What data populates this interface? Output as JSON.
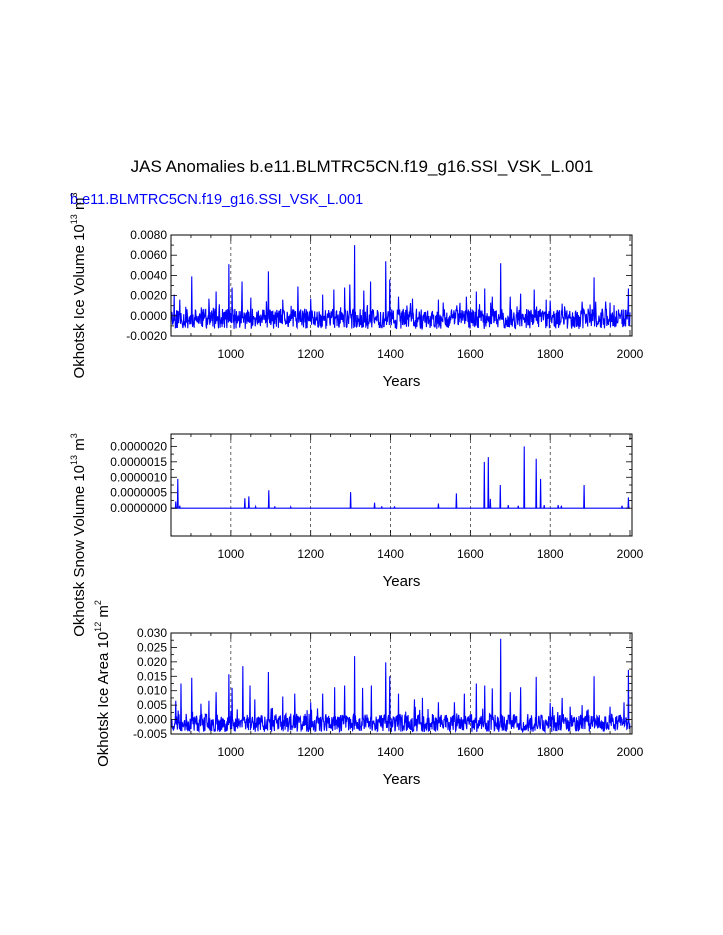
{
  "title": "JAS Anomalies b.e11.BLMTRC5CN.f19_g16.SSI_VSK_L.001",
  "subtitle": "b.e11.BLMTRC5CN.f19_g16.SSI_VSK_L.001",
  "colors": {
    "series": "#0000ff",
    "subtitle": "#0000ff",
    "axis": "#000000"
  },
  "chart_data": [
    {
      "type": "line",
      "ylabel": "Okhotsk Ice Volume 10",
      "ylabel_exp": "13",
      "ylabel_unit": " m",
      "ylabel_unit_exp": "3",
      "xlabel": "Years",
      "xlim": [
        850,
        2005
      ],
      "ylim": [
        -0.002,
        0.008
      ],
      "xticks": [
        1000,
        1200,
        1400,
        1600,
        1800,
        2000
      ],
      "yticks": [
        -0.002,
        0.0,
        0.002,
        0.004,
        0.006,
        0.008
      ],
      "ytick_labels": [
        "-0.0020",
        "0.0000",
        "0.0020",
        "0.0040",
        "0.0060",
        "0.0080"
      ],
      "vgrid": [
        1000,
        1200,
        1400,
        1600,
        1800
      ],
      "grid": "dashed vertical",
      "series": [
        {
          "baseline": -0.0004,
          "noise_lo": -0.0009,
          "noise_hi": 0.0011,
          "seed": 11,
          "peaks": [
            [
              858,
              0.0021
            ],
            [
              872,
              0.0016
            ],
            [
              902,
              0.0039
            ],
            [
              945,
              0.0017
            ],
            [
              963,
              0.0024
            ],
            [
              995,
              0.0051
            ],
            [
              1003,
              0.0028
            ],
            [
              1028,
              0.0034
            ],
            [
              1050,
              0.0018
            ],
            [
              1094,
              0.0044
            ],
            [
              1130,
              0.0016
            ],
            [
              1168,
              0.0029
            ],
            [
              1200,
              0.0017
            ],
            [
              1230,
              0.0021
            ],
            [
              1258,
              0.0026
            ],
            [
              1285,
              0.0028
            ],
            [
              1298,
              0.0031
            ],
            [
              1310,
              0.007
            ],
            [
              1333,
              0.0025
            ],
            [
              1350,
              0.0034
            ],
            [
              1388,
              0.0054
            ],
            [
              1398,
              0.0036
            ],
            [
              1420,
              0.0019
            ],
            [
              1455,
              0.0017
            ],
            [
              1520,
              0.0016
            ],
            [
              1590,
              0.0019
            ],
            [
              1615,
              0.0024
            ],
            [
              1636,
              0.0027
            ],
            [
              1655,
              0.0019
            ],
            [
              1676,
              0.0052
            ],
            [
              1700,
              0.0019
            ],
            [
              1726,
              0.0022
            ],
            [
              1760,
              0.0026
            ],
            [
              1790,
              0.0016
            ],
            [
              1800,
              0.0015
            ],
            [
              1830,
              0.0012
            ],
            [
              1880,
              0.0014
            ],
            [
              1910,
              0.0038
            ],
            [
              1950,
              0.0013
            ],
            [
              1996,
              0.0027
            ]
          ]
        }
      ]
    },
    {
      "type": "line",
      "ylabel": "Okhotsk Snow Volume 10",
      "ylabel_exp": "13",
      "ylabel_unit": " m",
      "ylabel_unit_exp": "3",
      "xlabel": "Years",
      "xlim": [
        850,
        2005
      ],
      "ylim": [
        -9e-07,
        2.4e-06
      ],
      "xticks": [
        1000,
        1200,
        1400,
        1600,
        1800,
        2000
      ],
      "yticks": [
        0.0,
        5e-07,
        1e-06,
        1.5e-06,
        2e-06
      ],
      "ytick_labels": [
        "0.0000000",
        "0.0000005",
        "0.0000010",
        "0.0000015",
        "0.0000020"
      ],
      "vgrid": [
        1000,
        1200,
        1400,
        1600,
        1800
      ],
      "grid": "dashed vertical",
      "series": [
        {
          "baseline": 0.0,
          "noise_lo": 0.0,
          "noise_hi": 0.0,
          "seed": 5,
          "peaks": [
            [
              862,
              2.2e-07
            ],
            [
              867,
              9.5e-07
            ],
            [
              872,
              8e-08
            ],
            [
              1035,
              3.2e-07
            ],
            [
              1045,
              3.8e-07
            ],
            [
              1062,
              5e-08
            ],
            [
              1095,
              5.8e-07
            ],
            [
              1110,
              6e-08
            ],
            [
              1150,
              4e-08
            ],
            [
              1300,
              5.2e-07
            ],
            [
              1360,
              1.8e-07
            ],
            [
              1378,
              6e-08
            ],
            [
              1410,
              6e-08
            ],
            [
              1520,
              1.5e-07
            ],
            [
              1565,
              4.8e-07
            ],
            [
              1635,
              1.5e-06
            ],
            [
              1645,
              1.65e-06
            ],
            [
              1650,
              3e-07
            ],
            [
              1675,
              7.5e-07
            ],
            [
              1695,
              1e-07
            ],
            [
              1720,
              8e-08
            ],
            [
              1735,
              2e-06
            ],
            [
              1765,
              1.6e-06
            ],
            [
              1776,
              9.5e-07
            ],
            [
              1785,
              1e-07
            ],
            [
              1820,
              1e-07
            ],
            [
              1828,
              8e-08
            ],
            [
              1885,
              7.5e-07
            ],
            [
              1980,
              8e-08
            ],
            [
              1996,
              3.5e-07
            ]
          ]
        }
      ]
    },
    {
      "type": "line",
      "ylabel": "Okhotsk Ice Area 10",
      "ylabel_exp": "12",
      "ylabel_unit": " m",
      "ylabel_unit_exp": "2",
      "xlabel": "Years",
      "xlim": [
        850,
        2005
      ],
      "ylim": [
        -0.005,
        0.03
      ],
      "xticks": [
        1000,
        1200,
        1400,
        1600,
        1800,
        2000
      ],
      "yticks": [
        -0.005,
        0.0,
        0.005,
        0.01,
        0.015,
        0.02,
        0.025,
        0.03
      ],
      "ytick_labels": [
        "-0.005",
        "0.000",
        "0.005",
        "0.010",
        "0.015",
        "0.020",
        "0.025",
        "0.030"
      ],
      "vgrid": [
        1000,
        1200,
        1400,
        1600,
        1800
      ],
      "grid": "dashed vertical",
      "series": [
        {
          "baseline": -0.0015,
          "noise_lo": -0.0028,
          "noise_hi": 0.0035,
          "seed": 23,
          "peaks": [
            [
              862,
              0.0065
            ],
            [
              875,
              0.0125
            ],
            [
              902,
              0.0145
            ],
            [
              925,
              0.0055
            ],
            [
              945,
              0.0065
            ],
            [
              963,
              0.0095
            ],
            [
              995,
              0.0157
            ],
            [
              1003,
              0.011
            ],
            [
              1030,
              0.0185
            ],
            [
              1048,
              0.0118
            ],
            [
              1060,
              0.007
            ],
            [
              1094,
              0.0165
            ],
            [
              1130,
              0.008
            ],
            [
              1160,
              0.009
            ],
            [
              1200,
              0.006
            ],
            [
              1230,
              0.009
            ],
            [
              1260,
              0.0112
            ],
            [
              1285,
              0.0118
            ],
            [
              1310,
              0.022
            ],
            [
              1330,
              0.011
            ],
            [
              1352,
              0.0118
            ],
            [
              1388,
              0.0198
            ],
            [
              1398,
              0.015
            ],
            [
              1420,
              0.009
            ],
            [
              1460,
              0.007
            ],
            [
              1480,
              0.0075
            ],
            [
              1520,
              0.006
            ],
            [
              1560,
              0.006
            ],
            [
              1585,
              0.009
            ],
            [
              1615,
              0.0125
            ],
            [
              1636,
              0.0118
            ],
            [
              1655,
              0.0108
            ],
            [
              1676,
              0.028
            ],
            [
              1700,
              0.0095
            ],
            [
              1726,
              0.0112
            ],
            [
              1765,
              0.0148
            ],
            [
              1800,
              0.0058
            ],
            [
              1830,
              0.0075
            ],
            [
              1850,
              0.0045
            ],
            [
              1880,
              0.005
            ],
            [
              1910,
              0.015
            ],
            [
              1950,
              0.0045
            ],
            [
              1985,
              0.006
            ],
            [
              1996,
              0.0172
            ]
          ]
        }
      ]
    }
  ]
}
